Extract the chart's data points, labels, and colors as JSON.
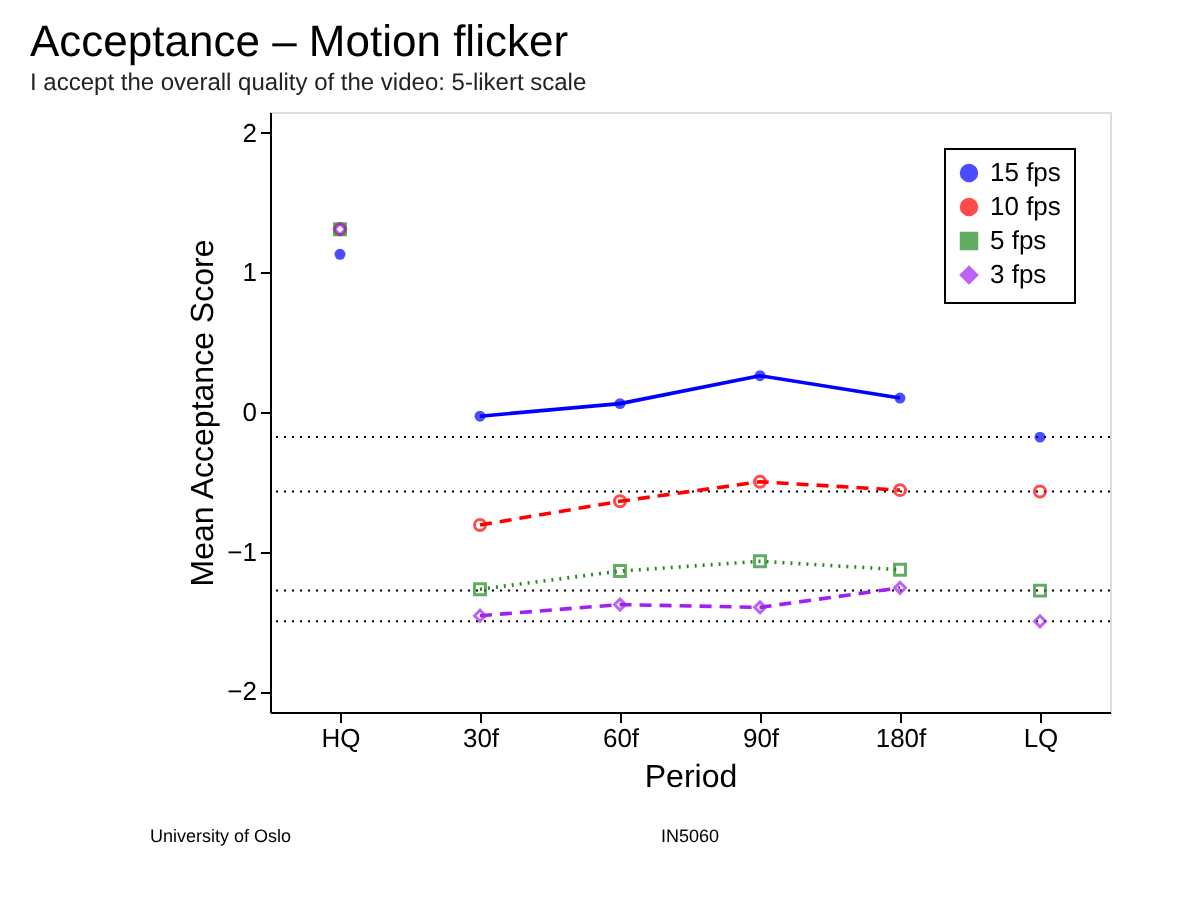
{
  "chart_data": {
    "type": "line",
    "title": "Acceptance – Motion flicker",
    "subtitle": "I accept the overall quality of the video: 5-likert scale",
    "xlabel": "Period",
    "ylabel": "Mean Acceptance Score",
    "categories": [
      "HQ",
      "30f",
      "60f",
      "90f",
      "180f",
      "LQ"
    ],
    "series": [
      {
        "name": "15 fps",
        "color": "#0000ff",
        "marker": "circle",
        "line_style": "solid",
        "values": [
          null,
          -0.03,
          0.06,
          0.26,
          0.1,
          null
        ]
      },
      {
        "name": "10 fps",
        "color": "#ff0000",
        "marker": "circle",
        "line_style": "dashed",
        "values": [
          null,
          -0.81,
          -0.64,
          -0.5,
          -0.56,
          null
        ]
      },
      {
        "name": "5 fps",
        "color": "#228b22",
        "marker": "square",
        "line_style": "dotted",
        "values": [
          null,
          -1.27,
          -1.14,
          -1.07,
          -1.13,
          null
        ]
      },
      {
        "name": "3 fps",
        "color": "#a020f0",
        "marker": "diamond",
        "line_style": "dashed",
        "values": [
          null,
          -1.46,
          -1.38,
          -1.4,
          -1.26,
          null
        ]
      },
      {
        "type": "scatter",
        "color": "#0000ff",
        "marker": "circle",
        "values": [
          1.13,
          null,
          null,
          null,
          null,
          -0.18
        ]
      },
      {
        "type": "scatter",
        "color": "#ff0000",
        "marker": "circle",
        "values": [
          1.31,
          null,
          null,
          null,
          null,
          -0.57
        ]
      },
      {
        "type": "scatter",
        "color": "#228b22",
        "marker": "square",
        "values": [
          1.31,
          null,
          null,
          null,
          null,
          -1.28
        ]
      },
      {
        "type": "scatter",
        "color": "#a020f0",
        "marker": "diamond",
        "values": [
          1.31,
          null,
          null,
          null,
          null,
          -1.5
        ]
      }
    ],
    "ylim": [
      -2.15,
      2.15
    ],
    "yticks": [
      -2,
      -1,
      0,
      1,
      2
    ],
    "grid": false,
    "legend": "top right",
    "ref_lines": [
      {
        "axis": "y",
        "value": -0.18,
        "color": "#000000",
        "line_style": "dotted"
      },
      {
        "axis": "y",
        "value": -0.57,
        "color": "#000000",
        "line_style": "dotted"
      },
      {
        "axis": "y",
        "value": -1.28,
        "color": "#000000",
        "line_style": "dotted"
      },
      {
        "axis": "y",
        "value": -1.5,
        "color": "#000000",
        "line_style": "dotted"
      }
    ],
    "annotations": [
      "University of Oslo",
      "IN5060"
    ]
  }
}
